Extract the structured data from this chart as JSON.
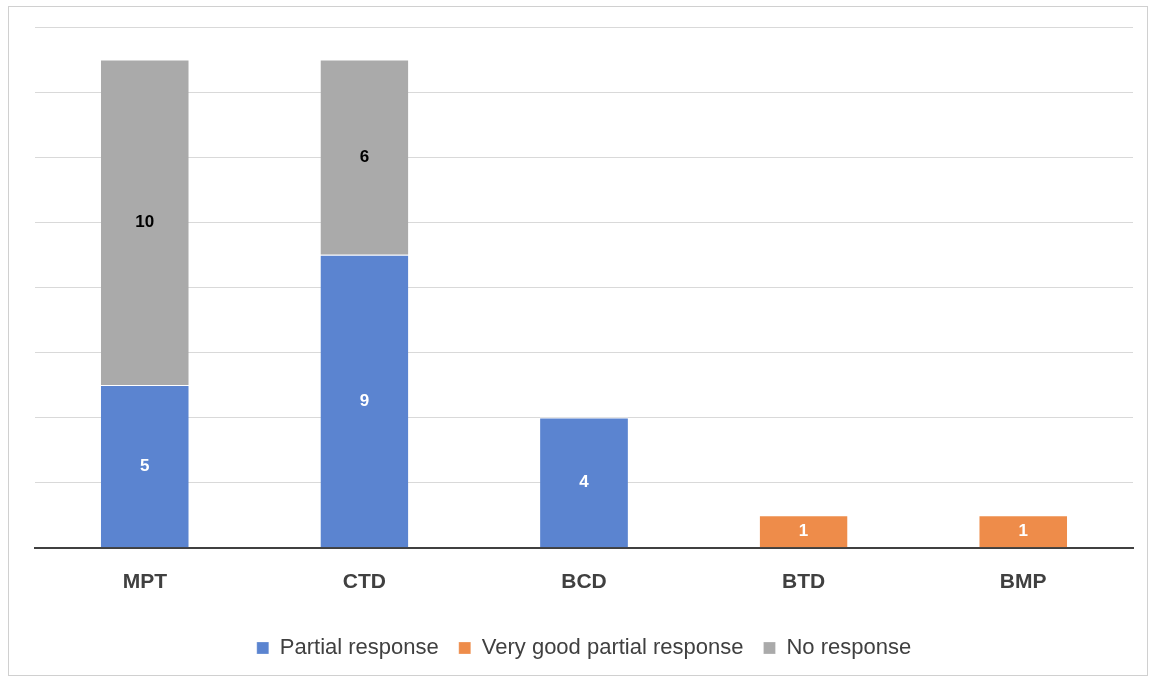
{
  "chart_data": {
    "type": "bar",
    "stacked": true,
    "categories": [
      "MPT",
      "CTD",
      "BCD",
      "BTD",
      "BMP"
    ],
    "series": [
      {
        "name": "Partial response",
        "color": "#5b84d0",
        "values": [
          5,
          9,
          4,
          null,
          null
        ]
      },
      {
        "name": "Very good partial response",
        "color": "#ee8c4a",
        "values": [
          null,
          null,
          null,
          1,
          1
        ]
      },
      {
        "name": "No response",
        "color": "#aaaaaa",
        "values": [
          10,
          6,
          null,
          null,
          null
        ]
      }
    ],
    "ylim": [
      0,
      16
    ],
    "yticks": [
      {
        "value": 0,
        "label": null
      },
      {
        "value": 2,
        "label": null
      },
      {
        "value": 4,
        "label": null
      },
      {
        "value": 6,
        "label": null
      },
      {
        "value": 8,
        "label": null
      },
      {
        "value": 10,
        "label": null
      },
      {
        "value": 12,
        "label": null
      },
      {
        "value": 14,
        "label": null
      },
      {
        "value": 16,
        "label": null
      }
    ],
    "grid": "y",
    "tick_labels": "x",
    "legend": "bottom",
    "data_labels": true
  }
}
